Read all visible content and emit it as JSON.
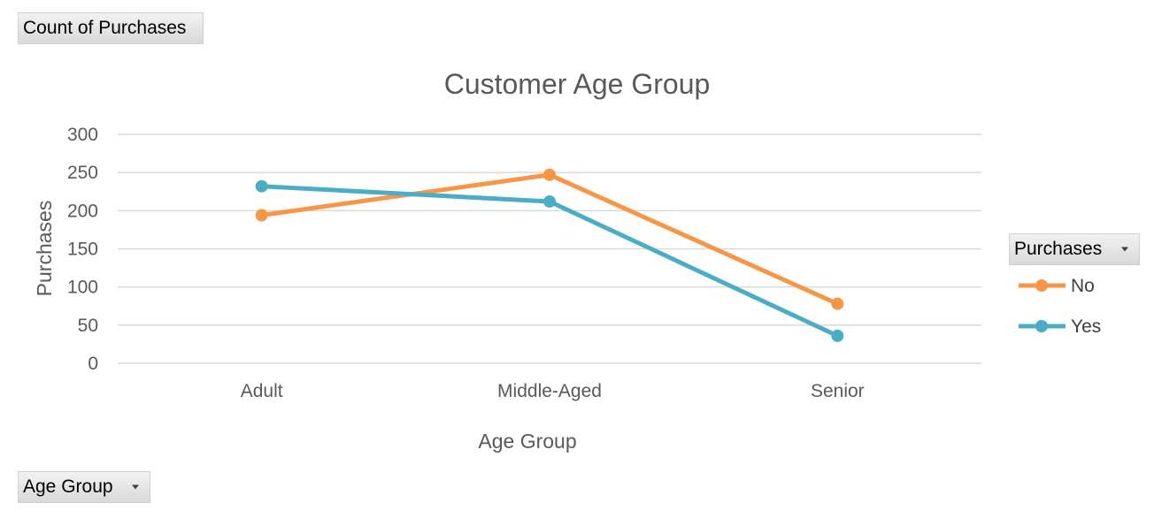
{
  "pivot": {
    "values_field": "Count of Purchases",
    "axis_field": "Age Group",
    "legend_field": "Purchases"
  },
  "colors": {
    "No": "#f79646",
    "Yes": "#4bacc6",
    "grid": "#d9d9d9",
    "text": "#595959"
  },
  "chart_data": {
    "type": "line",
    "title": "Customer Age Group",
    "xlabel": "Age Group",
    "ylabel": "Purchases",
    "categories": [
      "Adult",
      "Middle-Aged",
      "Senior"
    ],
    "ylim": [
      0,
      300
    ],
    "yticks": [
      0,
      50,
      100,
      150,
      200,
      250,
      300
    ],
    "grid": true,
    "legend_position": "right",
    "series": [
      {
        "name": "No",
        "values": [
          194,
          247,
          78
        ]
      },
      {
        "name": "Yes",
        "values": [
          232,
          212,
          36
        ]
      }
    ]
  }
}
